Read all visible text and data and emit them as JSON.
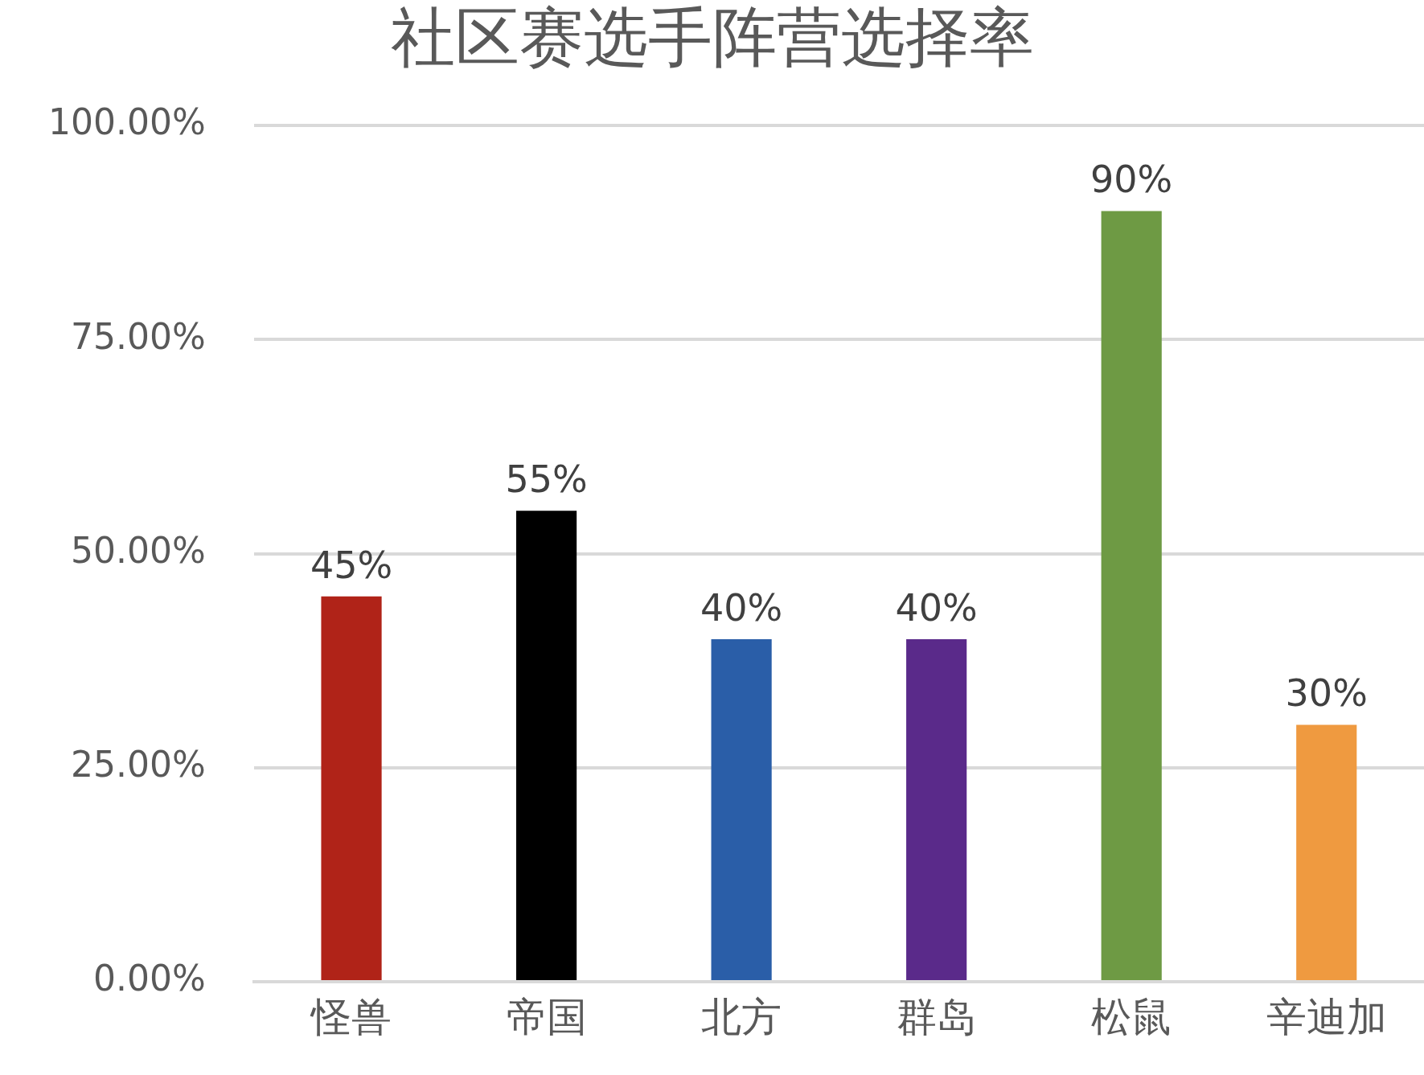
{
  "chart_data": {
    "type": "bar",
    "title": "社区赛选手阵营选择率",
    "categories": [
      "怪兽",
      "帝国",
      "北方",
      "群岛",
      "松鼠",
      "辛迪加"
    ],
    "values": [
      45,
      55,
      40,
      40,
      90,
      30
    ],
    "colors": [
      "#b02318",
      "#000000",
      "#2a5ea8",
      "#5a2a8a",
      "#6e9a44",
      "#ef9a40"
    ],
    "value_labels": [
      "45%",
      "55%",
      "40%",
      "40%",
      "90%",
      "30%"
    ],
    "ylim": [
      0,
      100
    ],
    "yticks": [
      {
        "value": 0,
        "label": "0.00%"
      },
      {
        "value": 25,
        "label": "25.00%"
      },
      {
        "value": 50,
        "label": "50.00%"
      },
      {
        "value": 75,
        "label": "75.00%"
      },
      {
        "value": 100,
        "label": "100.00%"
      }
    ],
    "grid": "y",
    "legend": false
  }
}
